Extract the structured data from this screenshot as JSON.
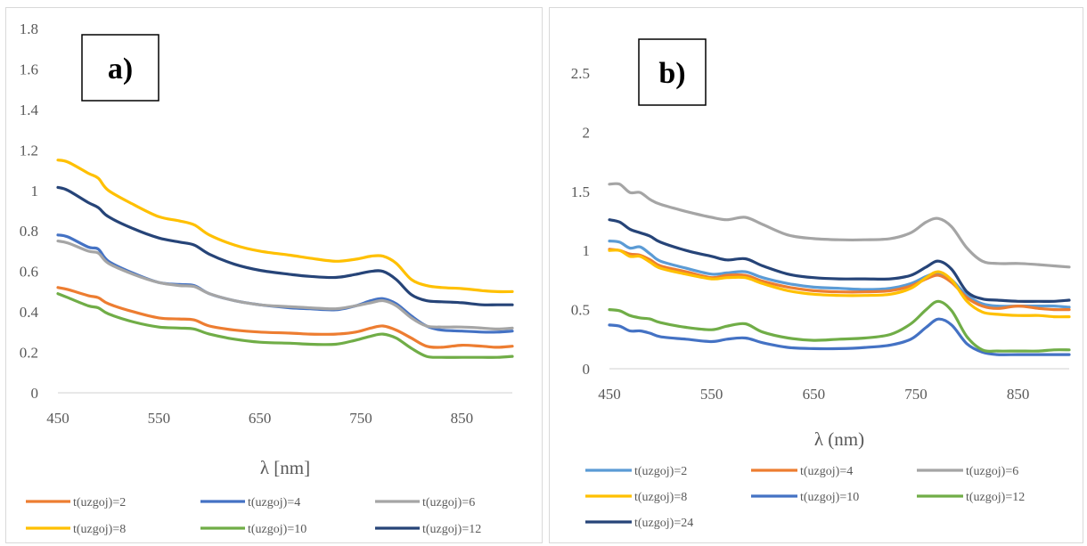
{
  "chart_data": [
    {
      "type": "line",
      "panel_label": "a)",
      "title": "",
      "xlabel": "λ [nm]",
      "ylabel": "",
      "xlim": [
        450,
        900
      ],
      "ylim": [
        0,
        1.8
      ],
      "xticks": [
        450,
        550,
        650,
        750,
        850
      ],
      "yticks": [
        0,
        0.2,
        0.4,
        0.6,
        0.8,
        1,
        1.2,
        1.4,
        1.6,
        1.8
      ],
      "ytick_labels": [
        "0",
        "0.2",
        "0.4",
        "0.6",
        "0.8",
        "1",
        "1.2",
        "1.4",
        "1.6",
        "1.8"
      ],
      "grid": false,
      "legend_position": "bottom",
      "legend_columns": 3,
      "x": [
        450,
        460,
        480,
        490,
        500,
        525,
        550,
        570,
        585,
        600,
        625,
        650,
        680,
        700,
        725,
        745,
        760,
        772,
        785,
        800,
        815,
        830,
        850,
        870,
        885,
        900
      ],
      "series": [
        {
          "name": "t(uzgoj)=2",
          "color": "#ED7D31",
          "values": [
            0.52,
            0.51,
            0.48,
            0.47,
            0.44,
            0.4,
            0.37,
            0.365,
            0.36,
            0.33,
            0.31,
            0.3,
            0.295,
            0.29,
            0.29,
            0.3,
            0.32,
            0.33,
            0.31,
            0.27,
            0.23,
            0.225,
            0.235,
            0.23,
            0.225,
            0.23
          ]
        },
        {
          "name": "t(uzgoj)=4",
          "color": "#4472C4",
          "values": [
            0.78,
            0.77,
            0.72,
            0.71,
            0.65,
            0.59,
            0.545,
            0.535,
            0.53,
            0.49,
            0.455,
            0.435,
            0.42,
            0.415,
            0.41,
            0.43,
            0.455,
            0.465,
            0.44,
            0.38,
            0.33,
            0.31,
            0.305,
            0.3,
            0.3,
            0.305
          ]
        },
        {
          "name": "t(uzgoj)=6",
          "color": "#A5A5A5",
          "values": [
            0.75,
            0.74,
            0.7,
            0.69,
            0.64,
            0.585,
            0.545,
            0.53,
            0.525,
            0.49,
            0.455,
            0.435,
            0.425,
            0.42,
            0.415,
            0.43,
            0.445,
            0.455,
            0.43,
            0.37,
            0.33,
            0.325,
            0.325,
            0.32,
            0.315,
            0.32
          ]
        },
        {
          "name": "t(uzgoj)=8",
          "color": "#FFC000",
          "values": [
            1.15,
            1.14,
            1.085,
            1.06,
            1.0,
            0.93,
            0.87,
            0.85,
            0.83,
            0.78,
            0.73,
            0.7,
            0.68,
            0.665,
            0.65,
            0.66,
            0.675,
            0.675,
            0.64,
            0.56,
            0.53,
            0.52,
            0.515,
            0.505,
            0.5,
            0.5
          ]
        },
        {
          "name": "t(uzgoj)=10",
          "color": "#70AD47",
          "values": [
            0.49,
            0.47,
            0.43,
            0.42,
            0.39,
            0.35,
            0.325,
            0.32,
            0.315,
            0.29,
            0.265,
            0.25,
            0.245,
            0.24,
            0.24,
            0.26,
            0.28,
            0.29,
            0.27,
            0.22,
            0.18,
            0.175,
            0.175,
            0.175,
            0.175,
            0.18
          ]
        },
        {
          "name": "t(uzgoj)=12",
          "color": "#264478",
          "values": [
            1.015,
            1.0,
            0.94,
            0.915,
            0.87,
            0.81,
            0.765,
            0.745,
            0.73,
            0.685,
            0.635,
            0.605,
            0.585,
            0.575,
            0.57,
            0.585,
            0.6,
            0.6,
            0.56,
            0.485,
            0.455,
            0.45,
            0.445,
            0.435,
            0.435,
            0.435
          ]
        }
      ]
    },
    {
      "type": "line",
      "panel_label": "b)",
      "title": "",
      "xlabel": "λ (nm)",
      "ylabel": "",
      "xlim": [
        450,
        900
      ],
      "ylim": [
        0,
        2.5
      ],
      "xticks": [
        450,
        550,
        650,
        750,
        850
      ],
      "yticks": [
        0,
        0.5,
        1,
        1.5,
        2,
        2.5
      ],
      "ytick_labels": [
        "0",
        "0.5",
        "1",
        "1.5",
        "2",
        "2.5"
      ],
      "grid": false,
      "legend_position": "bottom",
      "legend_columns": 3,
      "x": [
        450,
        460,
        470,
        480,
        490,
        500,
        525,
        550,
        565,
        583,
        600,
        625,
        650,
        675,
        700,
        725,
        745,
        760,
        772,
        785,
        800,
        815,
        830,
        850,
        870,
        885,
        900
      ],
      "series": [
        {
          "name": "t(uzgoj)=2",
          "color": "#5B9BD5",
          "values": [
            1.08,
            1.07,
            1.02,
            1.03,
            0.97,
            0.91,
            0.85,
            0.8,
            0.81,
            0.82,
            0.77,
            0.72,
            0.69,
            0.68,
            0.67,
            0.68,
            0.72,
            0.78,
            0.81,
            0.75,
            0.62,
            0.55,
            0.53,
            0.53,
            0.53,
            0.53,
            0.52
          ]
        },
        {
          "name": "t(uzgoj)=4",
          "color": "#ED7D31",
          "values": [
            1.01,
            1.0,
            0.97,
            0.96,
            0.92,
            0.87,
            0.82,
            0.77,
            0.79,
            0.79,
            0.74,
            0.69,
            0.66,
            0.65,
            0.65,
            0.66,
            0.7,
            0.76,
            0.79,
            0.73,
            0.6,
            0.53,
            0.51,
            0.53,
            0.51,
            0.5,
            0.5
          ]
        },
        {
          "name": "t(uzgoj)=6",
          "color": "#A5A5A5",
          "values": [
            1.56,
            1.56,
            1.49,
            1.49,
            1.43,
            1.39,
            1.33,
            1.28,
            1.26,
            1.28,
            1.22,
            1.13,
            1.1,
            1.09,
            1.09,
            1.1,
            1.15,
            1.24,
            1.27,
            1.2,
            1.02,
            0.91,
            0.89,
            0.89,
            0.88,
            0.87,
            0.86
          ]
        },
        {
          "name": "t(uzgoj)=8",
          "color": "#FFC000",
          "values": [
            1.0,
            1.0,
            0.95,
            0.95,
            0.9,
            0.85,
            0.8,
            0.76,
            0.77,
            0.77,
            0.72,
            0.66,
            0.63,
            0.62,
            0.62,
            0.63,
            0.68,
            0.77,
            0.82,
            0.75,
            0.57,
            0.48,
            0.46,
            0.45,
            0.45,
            0.44,
            0.44
          ]
        },
        {
          "name": "t(uzgoj)=10",
          "color": "#4472C4",
          "values": [
            0.37,
            0.36,
            0.32,
            0.32,
            0.3,
            0.27,
            0.25,
            0.23,
            0.25,
            0.26,
            0.22,
            0.18,
            0.17,
            0.17,
            0.18,
            0.2,
            0.25,
            0.35,
            0.42,
            0.37,
            0.21,
            0.14,
            0.12,
            0.12,
            0.12,
            0.12,
            0.12
          ]
        },
        {
          "name": "t(uzgoj)=12",
          "color": "#70AD47",
          "values": [
            0.5,
            0.49,
            0.45,
            0.43,
            0.42,
            0.39,
            0.35,
            0.33,
            0.36,
            0.38,
            0.31,
            0.26,
            0.24,
            0.25,
            0.26,
            0.29,
            0.38,
            0.5,
            0.57,
            0.49,
            0.27,
            0.16,
            0.15,
            0.15,
            0.15,
            0.16,
            0.16
          ]
        },
        {
          "name": "t(uzgoj)=24",
          "color": "#264478",
          "values": [
            1.26,
            1.24,
            1.18,
            1.15,
            1.12,
            1.07,
            1.0,
            0.95,
            0.92,
            0.93,
            0.87,
            0.8,
            0.77,
            0.76,
            0.76,
            0.76,
            0.79,
            0.86,
            0.91,
            0.84,
            0.65,
            0.59,
            0.58,
            0.57,
            0.57,
            0.57,
            0.58
          ]
        }
      ]
    }
  ]
}
